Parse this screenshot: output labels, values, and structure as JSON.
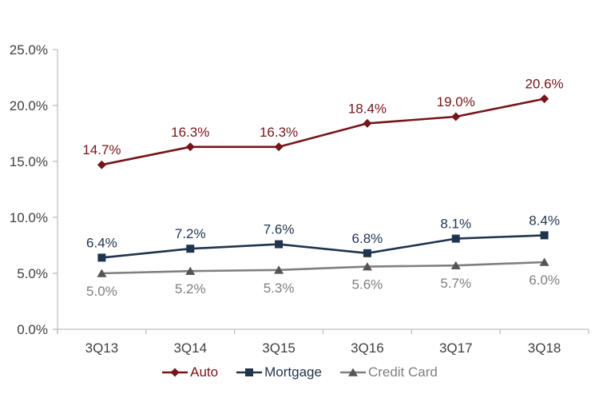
{
  "chart_data": {
    "type": "line",
    "title": "",
    "xlabel": "",
    "ylabel": "",
    "grid": false,
    "legend_position": "bottom",
    "categories": [
      "3Q13",
      "3Q14",
      "3Q15",
      "3Q16",
      "3Q17",
      "3Q18"
    ],
    "series": [
      {
        "name": "Auto",
        "values": [
          14.7,
          16.3,
          16.3,
          18.4,
          19.0,
          20.6
        ],
        "labels": [
          "14.7%",
          "16.3%",
          "16.3%",
          "18.4%",
          "19.0%",
          "20.6%"
        ],
        "color": "#75151A",
        "marker": "diamond",
        "label_position": "above"
      },
      {
        "name": "Mortgage",
        "values": [
          6.4,
          7.2,
          7.6,
          6.8,
          8.1,
          8.4
        ],
        "labels": [
          "6.4%",
          "7.2%",
          "7.6%",
          "6.8%",
          "8.1%",
          "8.4%"
        ],
        "color": "#1F344E",
        "marker": "square",
        "label_position": "above"
      },
      {
        "name": "Credit Card",
        "values": [
          5.0,
          5.2,
          5.3,
          5.6,
          5.7,
          6.0
        ],
        "labels": [
          "5.0%",
          "5.2%",
          "5.3%",
          "5.6%",
          "5.7%",
          "6.0%"
        ],
        "color": "#7F7F7F",
        "marker_color": "#545454",
        "marker": "triangle",
        "label_position": "below"
      }
    ],
    "y_axis": {
      "min": 0,
      "max": 25,
      "step": 5,
      "ticks": [
        "25.0%",
        "20.0%",
        "15.0%",
        "10.0%",
        "5.0%",
        "0.0%"
      ]
    }
  },
  "colors": {
    "axis_line": "#BFBFBF",
    "tick_label": "#404040",
    "background": "#FFFFFF"
  }
}
